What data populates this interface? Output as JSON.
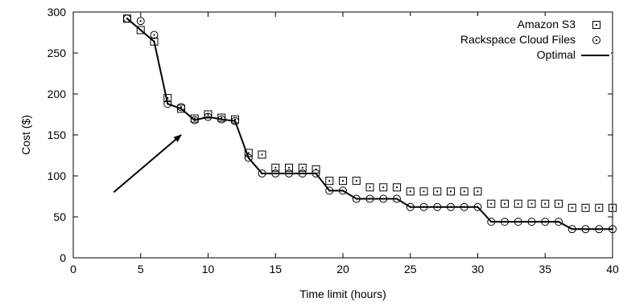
{
  "chart_data": {
    "type": "scatter",
    "title": "",
    "xlabel": "Time limit (hours)",
    "ylabel": "Cost ($)",
    "xlim": [
      0,
      40
    ],
    "ylim": [
      0,
      300
    ],
    "xticks": [
      0,
      5,
      10,
      15,
      20,
      25,
      30,
      35,
      40
    ],
    "yticks": [
      0,
      50,
      100,
      150,
      200,
      250,
      300
    ],
    "grid": false,
    "legend_position": "top-right",
    "series": [
      {
        "name": "Amazon S3",
        "marker": "square-dot",
        "points": [
          [
            4,
            292
          ],
          [
            5,
            278
          ],
          [
            6,
            264
          ],
          [
            7,
            195
          ],
          [
            8,
            182
          ],
          [
            9,
            170
          ],
          [
            10,
            175
          ],
          [
            11,
            171
          ],
          [
            12,
            169
          ],
          [
            13,
            128
          ],
          [
            14,
            126
          ],
          [
            15,
            110
          ],
          [
            16,
            110
          ],
          [
            17,
            110
          ],
          [
            18,
            108
          ],
          [
            19,
            94
          ],
          [
            20,
            94
          ],
          [
            21,
            94
          ],
          [
            22,
            86
          ],
          [
            23,
            86
          ],
          [
            24,
            86
          ],
          [
            25,
            81
          ],
          [
            26,
            81
          ],
          [
            27,
            81
          ],
          [
            28,
            81
          ],
          [
            29,
            81
          ],
          [
            30,
            81
          ],
          [
            31,
            66
          ],
          [
            32,
            66
          ],
          [
            33,
            66
          ],
          [
            34,
            66
          ],
          [
            35,
            66
          ],
          [
            36,
            66
          ],
          [
            37,
            61
          ],
          [
            38,
            61
          ],
          [
            39,
            61
          ],
          [
            40,
            61
          ]
        ]
      },
      {
        "name": "Rackspace Cloud Files",
        "marker": "circle-dot",
        "points": [
          [
            4,
            292
          ],
          [
            5,
            289
          ],
          [
            6,
            272
          ],
          [
            7,
            188
          ],
          [
            8,
            184
          ],
          [
            9,
            168
          ],
          [
            10,
            172
          ],
          [
            11,
            169
          ],
          [
            12,
            167
          ],
          [
            13,
            122
          ],
          [
            14,
            103
          ],
          [
            15,
            103
          ],
          [
            16,
            103
          ],
          [
            17,
            103
          ],
          [
            18,
            103
          ],
          [
            19,
            82
          ],
          [
            20,
            82
          ],
          [
            21,
            72
          ],
          [
            22,
            72
          ],
          [
            23,
            72
          ],
          [
            24,
            72
          ],
          [
            25,
            62
          ],
          [
            26,
            62
          ],
          [
            27,
            62
          ],
          [
            28,
            62
          ],
          [
            29,
            62
          ],
          [
            30,
            62
          ],
          [
            31,
            44
          ],
          [
            32,
            44
          ],
          [
            33,
            44
          ],
          [
            34,
            44
          ],
          [
            35,
            44
          ],
          [
            36,
            44
          ],
          [
            37,
            35
          ],
          [
            38,
            35
          ],
          [
            39,
            35
          ],
          [
            40,
            35
          ]
        ]
      },
      {
        "name": "Optimal",
        "marker": "line",
        "points": [
          [
            4,
            292
          ],
          [
            5,
            278
          ],
          [
            6,
            264
          ],
          [
            7,
            188
          ],
          [
            8,
            182
          ],
          [
            9,
            168
          ],
          [
            10,
            172
          ],
          [
            11,
            169
          ],
          [
            12,
            167
          ],
          [
            13,
            122
          ],
          [
            14,
            103
          ],
          [
            15,
            103
          ],
          [
            16,
            103
          ],
          [
            17,
            103
          ],
          [
            18,
            103
          ],
          [
            19,
            82
          ],
          [
            20,
            82
          ],
          [
            21,
            72
          ],
          [
            22,
            72
          ],
          [
            23,
            72
          ],
          [
            24,
            72
          ],
          [
            25,
            62
          ],
          [
            26,
            62
          ],
          [
            27,
            62
          ],
          [
            28,
            62
          ],
          [
            29,
            62
          ],
          [
            30,
            62
          ],
          [
            31,
            44
          ],
          [
            32,
            44
          ],
          [
            33,
            44
          ],
          [
            34,
            44
          ],
          [
            35,
            44
          ],
          [
            36,
            44
          ],
          [
            37,
            35
          ],
          [
            38,
            35
          ],
          [
            39,
            35
          ],
          [
            40,
            35
          ]
        ]
      }
    ],
    "annotations": [
      {
        "type": "arrow",
        "from": [
          3,
          80
        ],
        "to": [
          8,
          150
        ]
      }
    ]
  }
}
